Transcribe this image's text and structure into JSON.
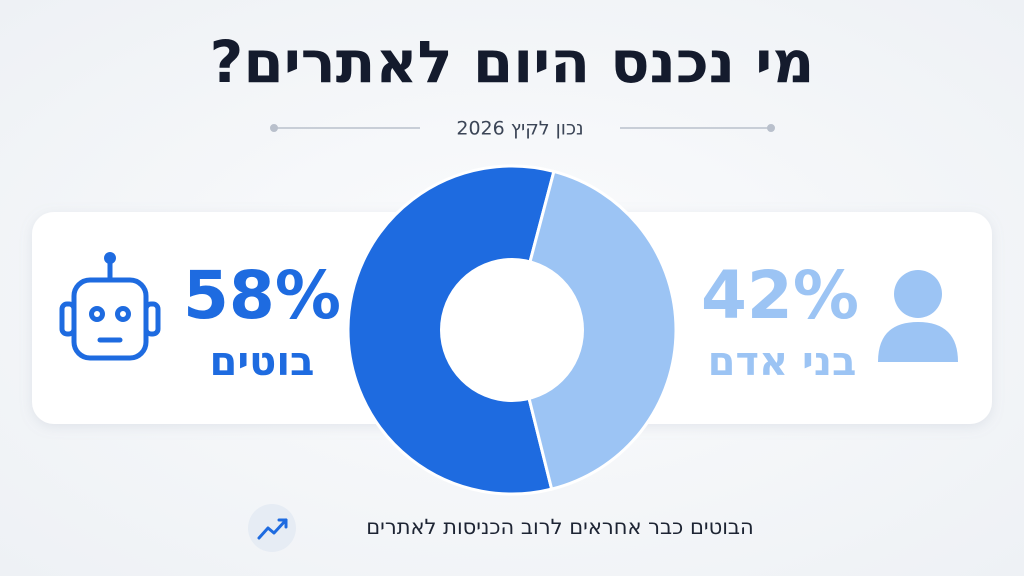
{
  "chart_data": {
    "type": "pie",
    "title": "מי נכנס היום לאתרים?",
    "subtitle": "נכון לקיץ 2026",
    "categories": [
      "בוטים",
      "בני אדם"
    ],
    "values": [
      58,
      42
    ],
    "value_labels": [
      "58%",
      "42%"
    ],
    "colors": [
      "#1e6be0",
      "#9cc4f4"
    ],
    "annotation": "הבוטים כבר אחראים לרוב הכניסות לאתרים"
  }
}
